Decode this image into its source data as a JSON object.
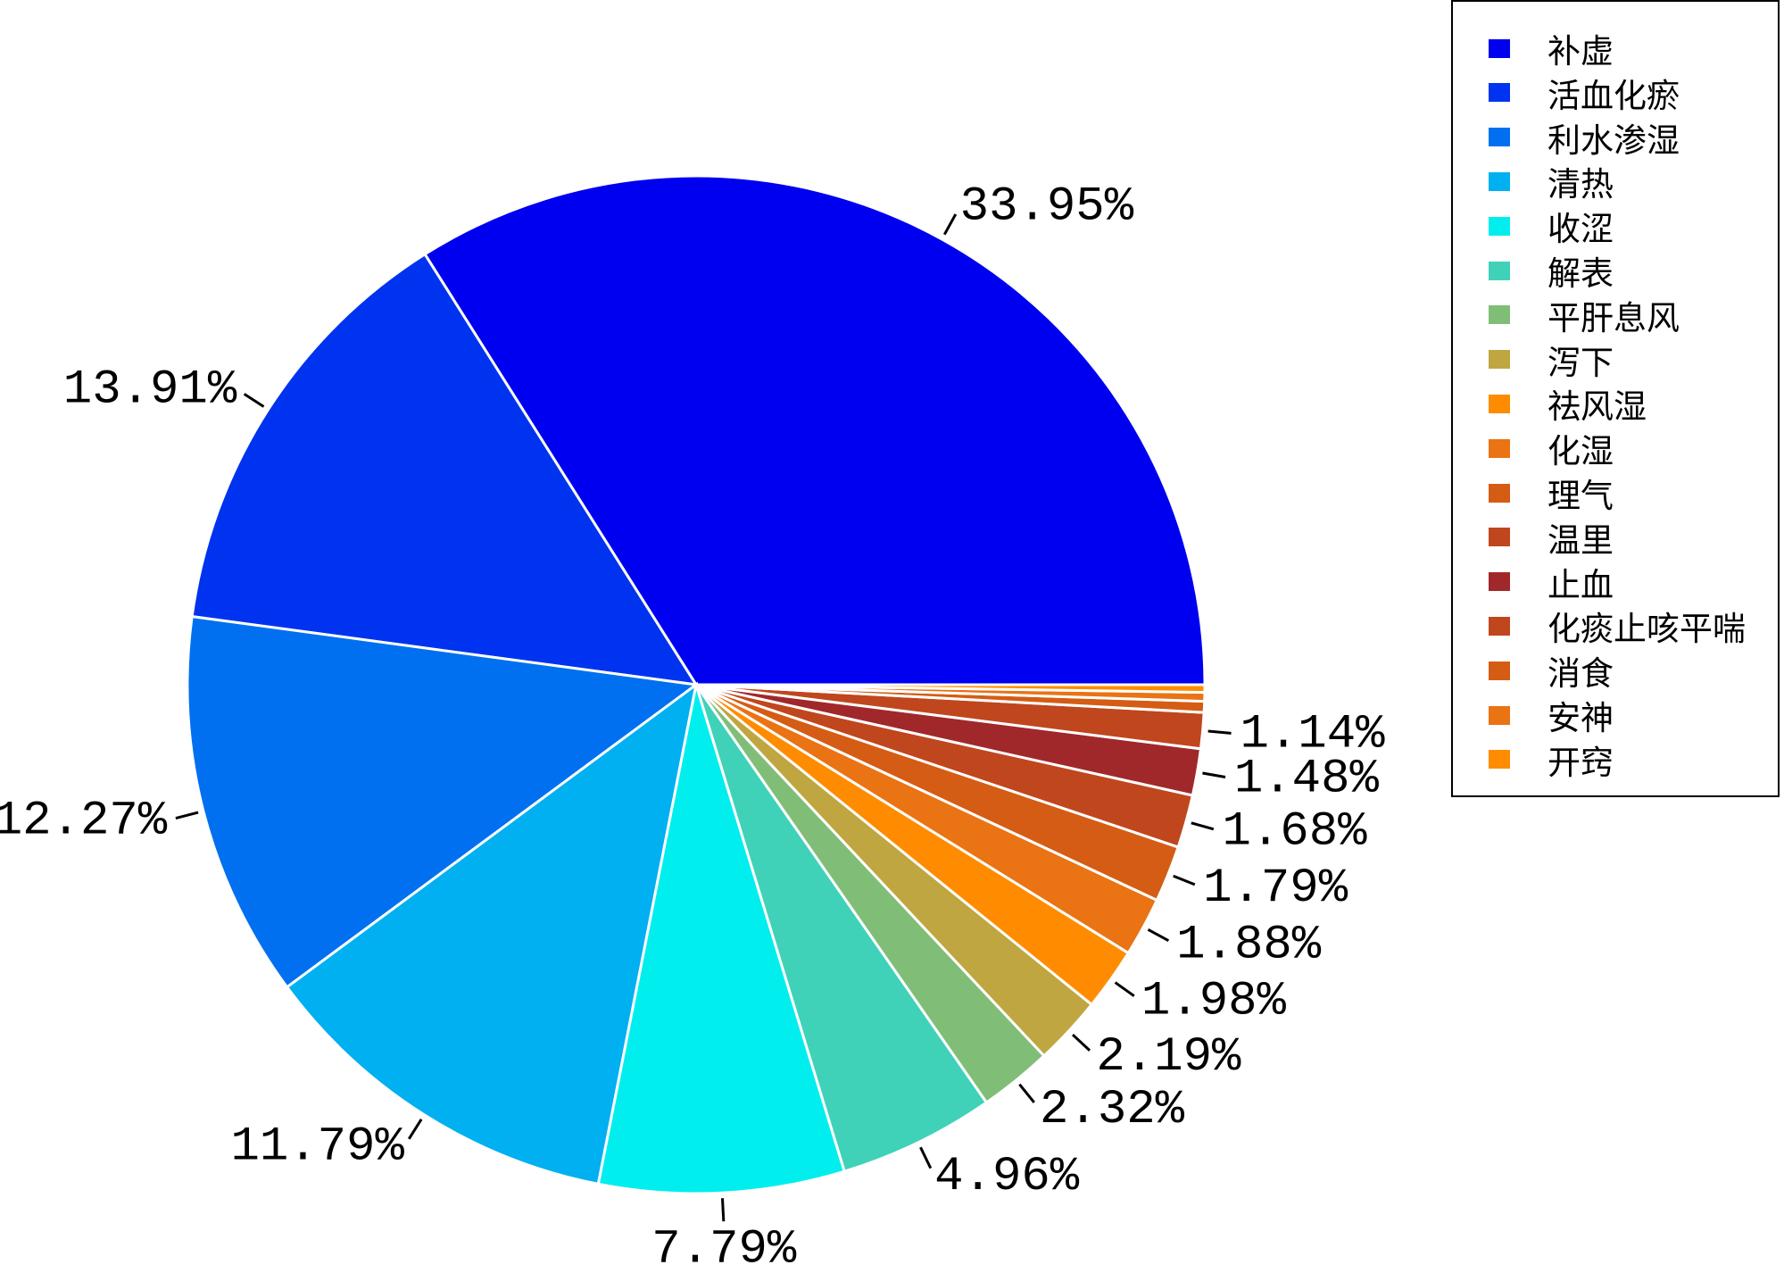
{
  "chart_data": {
    "type": "pie",
    "categories": [
      "补虚",
      "活血化瘀",
      "利水渗湿",
      "清热",
      "收涩",
      "解表",
      "平肝息风",
      "泻下",
      "祛风湿",
      "化湿",
      "理气",
      "温里",
      "止血",
      "化痰止咳平喘",
      "消食",
      "安神",
      "开窍"
    ],
    "values": [
      33.95,
      13.91,
      12.27,
      11.79,
      7.79,
      4.96,
      2.32,
      2.19,
      1.98,
      1.88,
      1.79,
      1.68,
      1.48,
      1.14,
      0.35,
      0.28,
      0.24
    ],
    "labels": [
      "33.95%",
      "13.91%",
      "12.27%",
      "11.79%",
      "7.79%",
      "4.96%",
      "2.32%",
      "2.19%",
      "1.98%",
      "1.88%",
      "1.79%",
      "1.68%",
      "1.48%",
      "1.14%",
      "",
      "",
      ""
    ],
    "colors": [
      "#0000f0",
      "#0033f0",
      "#0070f0",
      "#00b0f0",
      "#00eeee",
      "#40d2b8",
      "#80be78",
      "#c0a640",
      "#ff8c00",
      "#ea7314",
      "#d55c14",
      "#c0461e",
      "#a0282a",
      "#c0461e",
      "#d55c14",
      "#ea7314",
      "#ff8c00"
    ],
    "legend_position": "top-right",
    "title": ""
  }
}
